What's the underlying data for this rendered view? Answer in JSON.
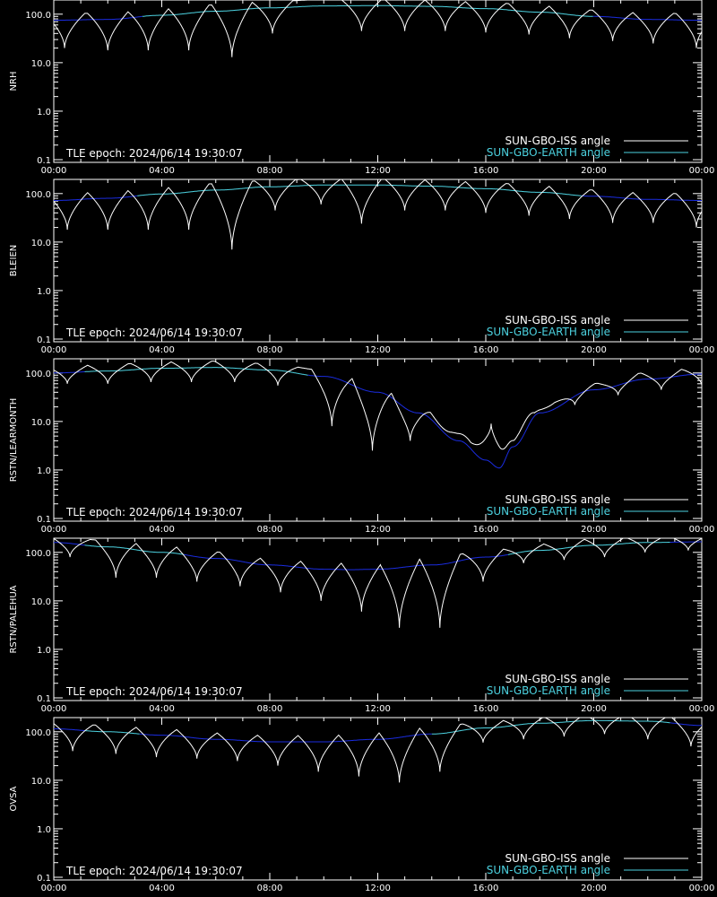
{
  "colors": {
    "background": "#000000",
    "axes": "#ffffff",
    "iss_curve": "#ffffff",
    "earth_curve_lit": "#4cd2e0",
    "earth_curve_shadow": "#1a2ce0",
    "earth_legend": "#4cd2e0"
  },
  "chart_data": [
    {
      "type": "line",
      "ylabel": "NRH",
      "yscale": "log",
      "ylim": [
        0.1,
        180
      ],
      "yticks": [
        "100.0",
        "10.0",
        "1.0",
        "0.1"
      ],
      "xticks": [
        "00:00",
        "04:00",
        "08:00",
        "12:00",
        "16:00",
        "20:00",
        "00:00"
      ],
      "xlim_hours": [
        0,
        24
      ],
      "annotation": "TLE epoch: 2024/06/14 19:30:07",
      "legend": [
        "SUN-GBO-ISS angle",
        "SUN-GBO-EARTH angle"
      ],
      "legend_position": "bottom-right",
      "series": [
        {
          "name": "SUN-GBO-EARTH angle",
          "x_hours": [
            0,
            2,
            4,
            6,
            8,
            10,
            12,
            14,
            16,
            18,
            20,
            22,
            24
          ],
          "values": [
            75,
            78,
            95,
            115,
            135,
            148,
            150,
            145,
            130,
            110,
            90,
            78,
            75
          ]
        },
        {
          "name": "SUN-GBO-ISS angle",
          "pass_dips_hours": [
            0.4,
            2.0,
            3.5,
            5.0,
            6.6,
            8.1,
            11.4,
            13.0,
            14.5,
            16.0,
            17.6,
            19.1,
            20.7,
            22.2,
            23.8
          ],
          "pass_minima": [
            20,
            18,
            18,
            18,
            13,
            40,
            45,
            45,
            45,
            42,
            38,
            32,
            28,
            25,
            20
          ]
        }
      ]
    },
    {
      "type": "line",
      "ylabel": "BLEIEN",
      "yscale": "log",
      "ylim": [
        0.1,
        180
      ],
      "yticks": [
        "100.0",
        "10.0",
        "1.0",
        "0.1"
      ],
      "xticks": [
        "00:00",
        "04:00",
        "08:00",
        "12:00",
        "16:00",
        "20:00",
        "00:00"
      ],
      "xlim_hours": [
        0,
        24
      ],
      "annotation": "TLE epoch: 2024/06/14 19:30:07",
      "legend": [
        "SUN-GBO-ISS angle",
        "SUN-GBO-EARTH angle"
      ],
      "legend_position": "bottom-right",
      "series": [
        {
          "name": "SUN-GBO-EARTH angle",
          "x_hours": [
            0,
            2,
            4,
            6,
            8,
            10,
            12,
            14,
            16,
            18,
            20,
            22,
            24
          ],
          "values": [
            72,
            80,
            98,
            118,
            138,
            150,
            150,
            142,
            126,
            106,
            88,
            76,
            72
          ]
        },
        {
          "name": "SUN-GBO-ISS angle",
          "pass_dips_hours": [
            0.5,
            2.0,
            3.5,
            5.0,
            6.6,
            8.2,
            9.9,
            11.4,
            13.0,
            14.5,
            16.0,
            17.6,
            19.1,
            20.7,
            22.2,
            23.8
          ],
          "pass_minima": [
            18,
            18,
            18,
            18,
            7,
            45,
            60,
            24,
            45,
            45,
            40,
            35,
            30,
            25,
            25,
            20
          ]
        }
      ]
    },
    {
      "type": "line",
      "ylabel": "RSTN/LEARMONTH",
      "yscale": "log",
      "ylim": [
        0.1,
        180
      ],
      "yticks": [
        "100.0",
        "10.0",
        "1.0",
        "0.1"
      ],
      "xticks": [
        "00:00",
        "04:00",
        "08:00",
        "12:00",
        "16:00",
        "20:00",
        "00:00"
      ],
      "xlim_hours": [
        0,
        24
      ],
      "annotation": "TLE epoch: 2024/06/14 19:30:07",
      "legend": [
        "SUN-GBO-ISS angle",
        "SUN-GBO-EARTH angle"
      ],
      "legend_position": "bottom-right",
      "series": [
        {
          "name": "SUN-GBO-EARTH angle",
          "x_hours": [
            0,
            2,
            4,
            6,
            8,
            10,
            12,
            13.5,
            15,
            16,
            16.5,
            17,
            18,
            20,
            22,
            24
          ],
          "values": [
            100,
            110,
            125,
            130,
            115,
            85,
            40,
            15,
            4,
            1.6,
            1.1,
            3,
            15,
            45,
            75,
            95
          ]
        },
        {
          "name": "SUN-GBO-ISS angle",
          "pass_dips_hours": [
            0.5,
            2.0,
            3.6,
            5.1,
            6.7,
            8.3,
            10.3,
            11.8,
            13.2,
            14.7,
            16.2,
            17.8,
            19.3,
            20.9,
            22.5,
            24.0
          ],
          "pass_minima": [
            60,
            60,
            65,
            65,
            65,
            55,
            8,
            2.5,
            4,
            6,
            9,
            15,
            22,
            35,
            45,
            55
          ]
        }
      ]
    },
    {
      "type": "line",
      "ylabel": "RSTN/PALEHUA",
      "yscale": "log",
      "ylim": [
        0.1,
        180
      ],
      "yticks": [
        "100.0",
        "10.0",
        "1.0",
        "0.1"
      ],
      "xticks": [
        "00:00",
        "04:00",
        "08:00",
        "12:00",
        "16:00",
        "20:00",
        "00:00"
      ],
      "xlim_hours": [
        0,
        24
      ],
      "annotation": "TLE epoch: 2024/06/14 19:30:07",
      "legend": [
        "SUN-GBO-ISS angle",
        "SUN-GBO-EARTH angle"
      ],
      "legend_position": "bottom-right",
      "series": [
        {
          "name": "SUN-GBO-EARTH angle",
          "x_hours": [
            0,
            2,
            4,
            6,
            8,
            10,
            11,
            12,
            14,
            16,
            18,
            20,
            22,
            24
          ],
          "values": [
            160,
            130,
            100,
            75,
            55,
            45,
            44,
            45,
            55,
            80,
            110,
            140,
            160,
            165
          ]
        },
        {
          "name": "SUN-GBO-ISS angle",
          "pass_dips_hours": [
            0.6,
            2.3,
            3.8,
            5.3,
            6.9,
            8.4,
            9.9,
            11.4,
            12.8,
            14.3,
            15.9,
            17.4,
            18.9,
            20.4,
            21.9,
            23.5
          ],
          "pass_minima": [
            80,
            30,
            30,
            25,
            20,
            15,
            10,
            6,
            2.8,
            2.8,
            25,
            60,
            70,
            80,
            100,
            110
          ]
        }
      ]
    },
    {
      "type": "line",
      "ylabel": "OVSA",
      "yscale": "log",
      "ylim": [
        0.1,
        180
      ],
      "yticks": [
        "100.0",
        "10.0",
        "1.0",
        "0.1"
      ],
      "xticks": [
        "00:00",
        "04:00",
        "08:00",
        "12:00",
        "16:00",
        "20:00",
        "00:00"
      ],
      "xlim_hours": [
        0,
        24
      ],
      "annotation": "TLE epoch: 2024/06/14 19:30:07",
      "legend": [
        "SUN-GBO-ISS angle",
        "SUN-GBO-EARTH angle"
      ],
      "legend_position": "bottom-right",
      "series": [
        {
          "name": "SUN-GBO-EARTH angle",
          "x_hours": [
            0,
            2,
            4,
            6,
            8,
            10,
            12,
            14,
            16,
            18,
            20,
            22,
            24
          ],
          "values": [
            115,
            100,
            85,
            70,
            62,
            62,
            70,
            90,
            120,
            150,
            170,
            165,
            135
          ]
        },
        {
          "name": "SUN-GBO-ISS angle",
          "pass_dips_hours": [
            0.7,
            2.3,
            3.8,
            5.3,
            6.8,
            8.3,
            9.8,
            11.3,
            12.8,
            14.3,
            15.9,
            17.4,
            18.9,
            20.4,
            22.0,
            23.6
          ],
          "pass_minima": [
            40,
            35,
            30,
            28,
            25,
            20,
            15,
            12,
            9,
            15,
            60,
            70,
            80,
            90,
            70,
            50
          ]
        }
      ]
    }
  ]
}
